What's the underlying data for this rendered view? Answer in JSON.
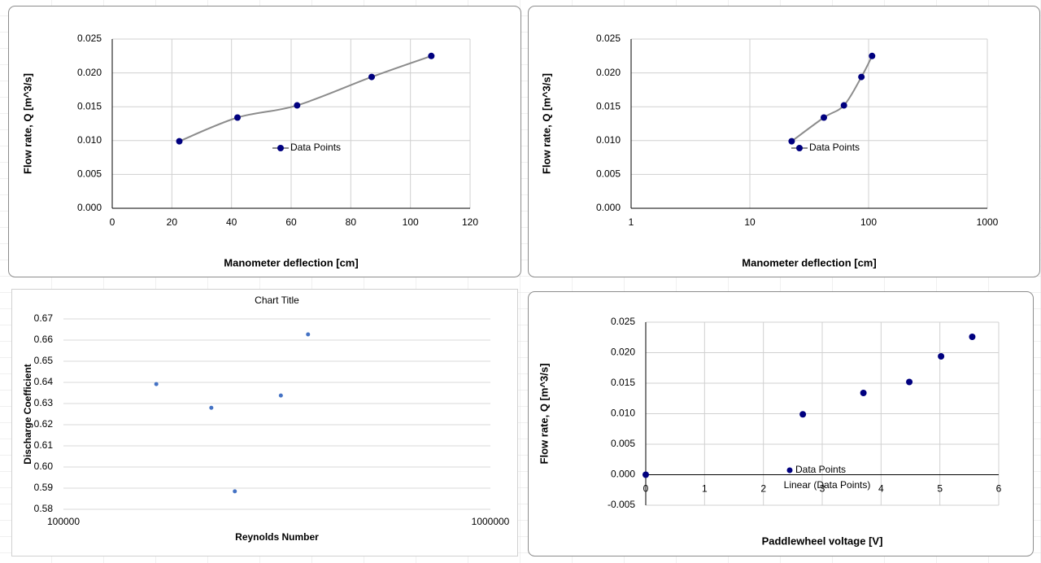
{
  "chart_data": [
    {
      "type": "line",
      "smooth": true,
      "x_label": "Manometer deflection [cm]",
      "y_label": "Flow rate, Q [m^3/s]",
      "x": [
        22.5,
        42,
        62,
        87,
        107
      ],
      "series": [
        {
          "name": "Data Points",
          "color": "#00007f",
          "line_color": "#8c8c8c",
          "values": [
            0.0099,
            0.0134,
            0.0152,
            0.0194,
            0.0225
          ]
        }
      ],
      "xlim": [
        0,
        120
      ],
      "xticks": [
        0,
        20,
        40,
        60,
        80,
        100,
        120
      ],
      "ylim": [
        0,
        0.025
      ],
      "yticks": [
        {
          "value": 0,
          "label": "0.000"
        },
        {
          "value": 0.005,
          "label": "0.005"
        },
        {
          "value": 0.01,
          "label": "0.010"
        },
        {
          "value": 0.015,
          "label": "0.015"
        },
        {
          "value": 0.02,
          "label": "0.020"
        },
        {
          "value": 0.025,
          "label": "0.025"
        }
      ],
      "grid": "both",
      "legend": "center"
    },
    {
      "type": "line",
      "smooth": true,
      "x_log": true,
      "x_label": "Manometer deflection [cm]",
      "y_label": "Flow rate, Q [m^3/s]",
      "x": [
        22.5,
        42,
        62,
        87,
        107
      ],
      "series": [
        {
          "name": "Data Points",
          "color": "#00007f",
          "line_color": "#8c8c8c",
          "values": [
            0.0099,
            0.0134,
            0.0152,
            0.0194,
            0.0225
          ]
        }
      ],
      "xlim": [
        1,
        1000
      ],
      "xticks": [
        1,
        10,
        100,
        1000
      ],
      "ylim": [
        0,
        0.025
      ],
      "yticks": [
        {
          "value": 0,
          "label": "0.000"
        },
        {
          "value": 0.005,
          "label": "0.005"
        },
        {
          "value": 0.01,
          "label": "0.010"
        },
        {
          "value": 0.015,
          "label": "0.015"
        },
        {
          "value": 0.02,
          "label": "0.020"
        },
        {
          "value": 0.025,
          "label": "0.025"
        }
      ],
      "grid": "both",
      "legend": "center"
    },
    {
      "type": "scatter",
      "x_log": true,
      "title": "Chart Title",
      "x_label": "Reynolds Number",
      "y_label": "Discharge Coefficient",
      "x": [
        165000,
        222000,
        252000,
        323000,
        374000
      ],
      "series": [
        {
          "name": null,
          "color": "#4472c4",
          "values": [
            0.6392,
            0.628,
            0.5885,
            0.6338,
            0.6627
          ]
        }
      ],
      "xlim": [
        100000,
        1000000
      ],
      "xticks": [
        100000,
        1000000
      ],
      "ylim": [
        0.58,
        0.67
      ],
      "yticks": [
        0.58,
        0.59,
        {
          "value": 0.6,
          "label": "0.60"
        },
        0.61,
        0.62,
        0.63,
        0.64,
        0.65,
        0.66,
        0.67
      ],
      "grid": "y"
    },
    {
      "type": "scatter",
      "x_label": "Paddlewheel voltage [V]",
      "y_label": "Flow rate, Q [m^3/s]",
      "x": [
        0,
        2.67,
        3.7,
        4.48,
        5.02,
        5.55
      ],
      "series": [
        {
          "name": "Data Points",
          "color": "#00007f",
          "values": [
            0,
            0.0099,
            0.0134,
            0.0152,
            0.0194,
            0.0226
          ]
        }
      ],
      "trendline": {
        "name": "Linear (Data Points)"
      },
      "xlim": [
        0,
        6
      ],
      "xticks": [
        0,
        1,
        2,
        3,
        4,
        5,
        6
      ],
      "ylim": [
        -0.005,
        0.025
      ],
      "yticks": [
        {
          "value": -0.005,
          "label": "-0.005"
        },
        {
          "value": 0,
          "label": "0.000"
        },
        {
          "value": 0.005,
          "label": "0.005"
        },
        {
          "value": 0.01,
          "label": "0.010"
        },
        {
          "value": 0.015,
          "label": "0.015"
        },
        {
          "value": 0.02,
          "label": "0.020"
        },
        {
          "value": 0.025,
          "label": "0.025"
        }
      ],
      "grid": "both",
      "legend": "bottom"
    }
  ]
}
